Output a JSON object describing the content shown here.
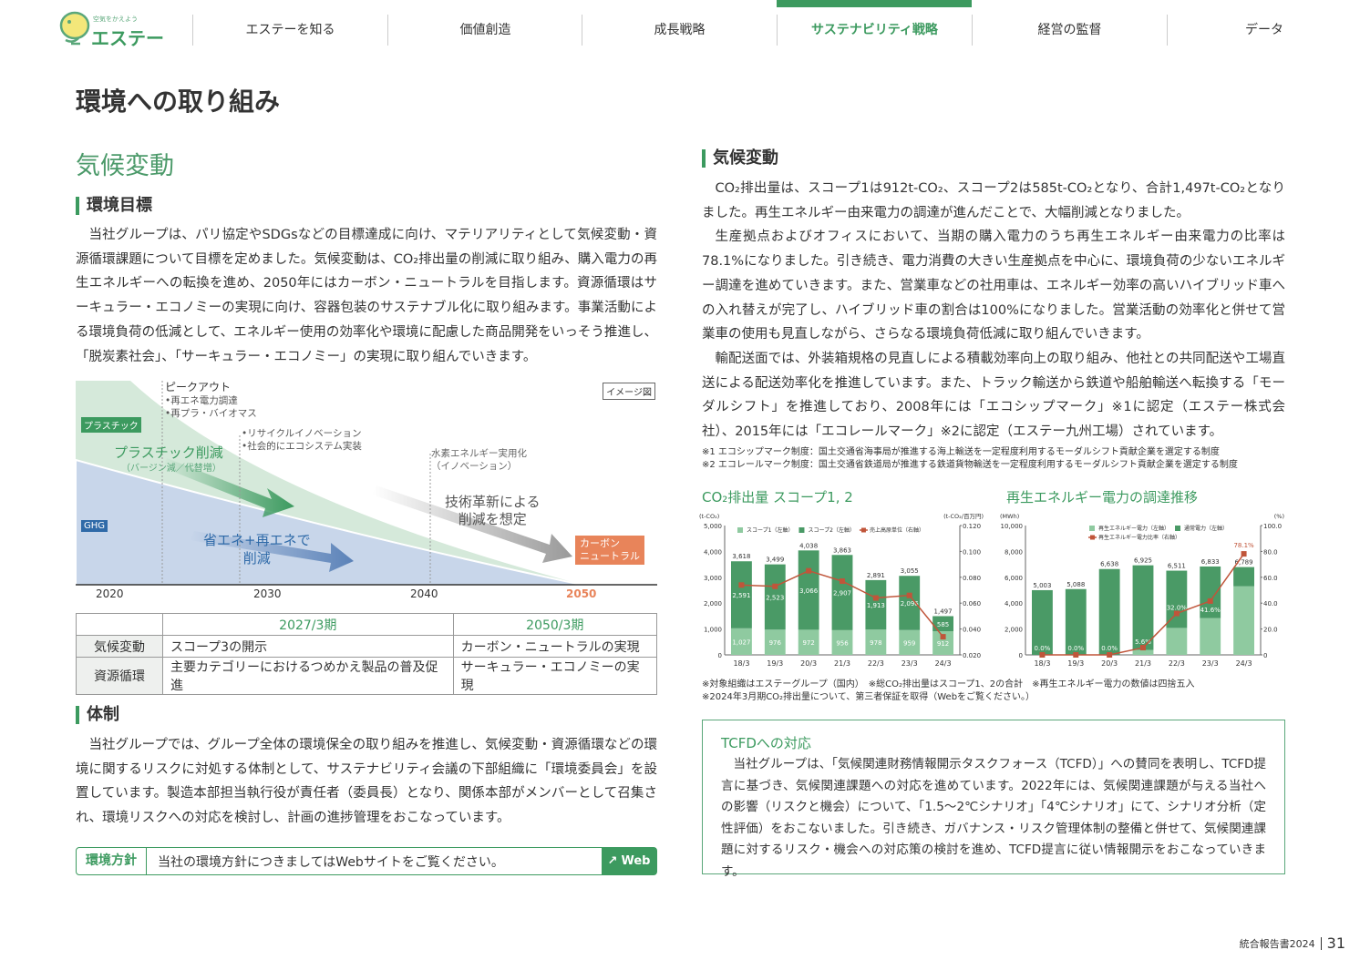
{
  "header": {
    "logo_tagline": "空気をかえよう",
    "logo_name": "エステー",
    "nav": [
      {
        "label": "エステーを知る"
      },
      {
        "label": "価値創造"
      },
      {
        "label": "成長戦略"
      },
      {
        "label": "サステナビリティ戦略",
        "active": true
      },
      {
        "label": "経営の監督"
      },
      {
        "label": "データ"
      }
    ]
  },
  "page_title": "環境への取り組み",
  "left": {
    "section_title": "気候変動",
    "goal": {
      "heading": "環境目標",
      "body": "当社グループは、パリ協定やSDGsなどの目標達成に向け、マテリアリティとして気候変動・資源循環課題について目標を定めました。気候変動は、CO₂排出量の削減に取り組み、購入電力の再生エネルギーへの転換を進め、2050年にはカーボン・ニュートラルを目指します。資源循環はサーキュラー・エコノミーの実現に向け、容器包装のサステナブル化に取り組みます。事業活動による環境負荷の低減として、エネルギー使用の効率化や環境に配慮した商品開発をいっそう推進し、「脱炭素社会」、「サーキュラー・エコノミー」の実現に取り組んでいきます。"
    },
    "roadmap": {
      "image_label": "イメージ図",
      "plastic_tag": "プラスチック",
      "ghg_tag": "GHG",
      "peak_out": "ピークアウト",
      "peak_items": [
        "•再エネ電力調達",
        "•再プラ・バイオマス"
      ],
      "recycle_items": [
        "•リサイクルイノベーション",
        "•社会的にエコシステム実装"
      ],
      "hydrogen": [
        "水素エネルギー実用化",
        "（イノベーション）"
      ],
      "plastic_reduce": "プラスチック削減",
      "plastic_reduce_sub": "（バージン減／代替増）",
      "energy_reduce": [
        "省エネ+再エネで",
        "削減"
      ],
      "tech": [
        "技術革新による",
        "削減を想定"
      ],
      "carbon_neutral": [
        "カーボン",
        "ニュートラル"
      ],
      "years": [
        "2020",
        "2030",
        "2040",
        "2050"
      ]
    },
    "goal_table": {
      "headers": [
        "",
        "2027/3期",
        "2050/3期"
      ],
      "rows": [
        [
          "気候変動",
          "スコープ3の開示",
          "カーボン・ニュートラルの実現"
        ],
        [
          "資源循環",
          "主要カテゴリーにおけるつめかえ製品の普及促進",
          "サーキュラー・エコノミーの実現"
        ]
      ]
    },
    "system": {
      "heading": "体制",
      "body": "当社グループでは、グループ全体の環境保全の取り組みを推進し、気候変動・資源循環などの環境に関するリスクに対処する体制として、サステナビリティ会議の下部組織に「環境委員会」を設置しています。製造本部担当執行役が責任者（委員長）となり、関係本部がメンバーとして召集され、環境リスクへの対応を検討し、計画の進捗管理をおこなっています。"
    },
    "policy": {
      "label": "環境方針",
      "text": "当社の環境方針につきましてはWebサイトをご覧ください。",
      "button": "Web"
    }
  },
  "right": {
    "heading": "気候変動",
    "paragraphs": [
      "CO₂排出量は、スコープ1は912t-CO₂、スコープ2は585t-CO₂となり、合計1,497t-CO₂となりました。再生エネルギー由来電力の調達が進んだことで、大幅削減となりました。",
      "生産拠点およびオフィスにおいて、当期の購入電力のうち再生エネルギー由来電力の比率は78.1%になりました。引き続き、電力消費の大きい生産拠点を中心に、環境負荷の少ないエネルギー調達を進めていきます。また、営業車などの社用車は、エネルギー効率の高いハイブリッド車への入れ替えが完了し、ハイブリッド車の割合は100%になりました。営業活動の効率化と併せて営業車の使用も見直しながら、さらなる環境負荷低減に取り組んでいきます。",
      "輸配送面では、外装箱規格の見直しによる積載効率向上の取り組み、他社との共同配送や工場直送による配送効率化を推進しています。また、トラック輸送から鉄道や船舶輸送へ転換する「モーダルシフト」を推進しており、2008年には「エコシップマーク」※1に認定（エステー株式会社）、2015年には「エコレールマーク」※2に認定（エステー九州工場）されています。"
    ],
    "footnotes": [
      "※1 エコシップマーク制度：国土交通省海事局が推進する海上輸送を一定程度利用するモーダルシフト貢献企業を選定する制度",
      "※2 エコレールマーク制度：国土交通省鉄道局が推進する鉄道貨物輸送を一定程度利用するモーダルシフト貢献企業を選定する制度"
    ],
    "chart_notes": [
      "※対象組織はエステーグループ（国内）　※総CO₂排出量はスコープ1、2の合計　※再生エネルギー電力の数値は四捨五入",
      "※2024年3月期CO₂排出量について、第三者保証を取得（Webをご覧ください。）"
    ],
    "tcfd": {
      "heading": "TCFDへの対応",
      "body": "当社グループは、「気候関連財務情報開示タスクフォース（TCFD）」への賛同を表明し、TCFD提言に基づき、気候関連課題への対応を進めています。2022年には、気候関連課題が与える当社への影響（リスクと機会）について、「1.5～2℃シナリオ」「4℃シナリオ」にて、シナリオ分析（定性評価）をおこないました。引き続き、ガバナンス・リスク管理体制の整備と併せて、気候関連課題に対するリスク・機会への対応策の検討を進め、TCFD提言に従い情報開示をおこなっていきます。"
    }
  },
  "footer": {
    "report": "統合報告書2024",
    "page": "31"
  },
  "colors": {
    "accent": "#3c9a5f",
    "light_green": "#8fcaa0",
    "dark_green": "#4a9a66",
    "line": "#c0553a",
    "orange": "#e8845a"
  },
  "chart_data": [
    {
      "type": "bar",
      "title": "CO₂排出量 スコープ1, 2",
      "ylabel": "(t-CO₂)",
      "y2label": "(t-CO₂/百万円)",
      "ylim": [
        0,
        5000
      ],
      "y2lim": [
        0.02,
        0.12
      ],
      "yticks": [
        "5,000",
        "4,000",
        "3,000",
        "2,000",
        "1,000",
        "0"
      ],
      "y2ticks": [
        "0.120",
        "0.100",
        "0.080",
        "0.060",
        "0.040",
        "0.020"
      ],
      "categories": [
        "18/3",
        "19/3",
        "20/3",
        "21/3",
        "22/3",
        "23/3",
        "24/3"
      ],
      "series": [
        {
          "name": "スコープ1（左軸）",
          "values": [
            1027,
            976,
            972,
            956,
            978,
            959,
            912
          ]
        },
        {
          "name": "スコープ2（左軸）",
          "values": [
            2591,
            2523,
            3066,
            2907,
            1913,
            2096,
            585
          ]
        },
        {
          "name": "売上高原単位（右軸）",
          "type": "line",
          "axis": "right",
          "values": [
            0.074,
            0.073,
            0.085,
            0.077,
            0.064,
            0.066,
            0.034
          ]
        }
      ],
      "totals": [
        3618,
        3499,
        4038,
        3863,
        2891,
        3055,
        1497
      ],
      "legend": "top"
    },
    {
      "type": "bar",
      "title": "再生エネルギー電力の調達推移",
      "ylabel": "(MWh)",
      "y2label": "(%)",
      "ylim": [
        0,
        10000
      ],
      "y2lim": [
        0,
        100
      ],
      "yticks": [
        "10,000",
        "8,000",
        "6,000",
        "4,000",
        "2,000",
        "0"
      ],
      "y2ticks": [
        "100.0",
        "80.0",
        "60.0",
        "40.0",
        "20.0",
        "0"
      ],
      "categories": [
        "18/3",
        "19/3",
        "20/3",
        "21/3",
        "22/3",
        "23/3",
        "24/3"
      ],
      "series": [
        {
          "name": "再生エネルギー電力（左軸）",
          "values": [
            0,
            0,
            0,
            388,
            2084,
            2843,
            5302
          ]
        },
        {
          "name": "通常電力（左軸）",
          "values": [
            5003,
            5088,
            6638,
            6537,
            4427,
            3990,
            1487
          ]
        },
        {
          "name": "再生エネルギー電力比率（右軸）",
          "type": "line",
          "axis": "right",
          "values": [
            0.0,
            0.0,
            0.0,
            5.6,
            32.0,
            41.6,
            78.1
          ]
        }
      ],
      "totals": [
        5003,
        5088,
        6638,
        6925,
        6511,
        6833,
        6789
      ],
      "rate_labels": [
        "0.0%",
        "0.0%",
        "0.0%",
        "5.6%",
        "32.0%",
        "41.6%",
        "78.1%"
      ],
      "legend": "top-right"
    }
  ]
}
